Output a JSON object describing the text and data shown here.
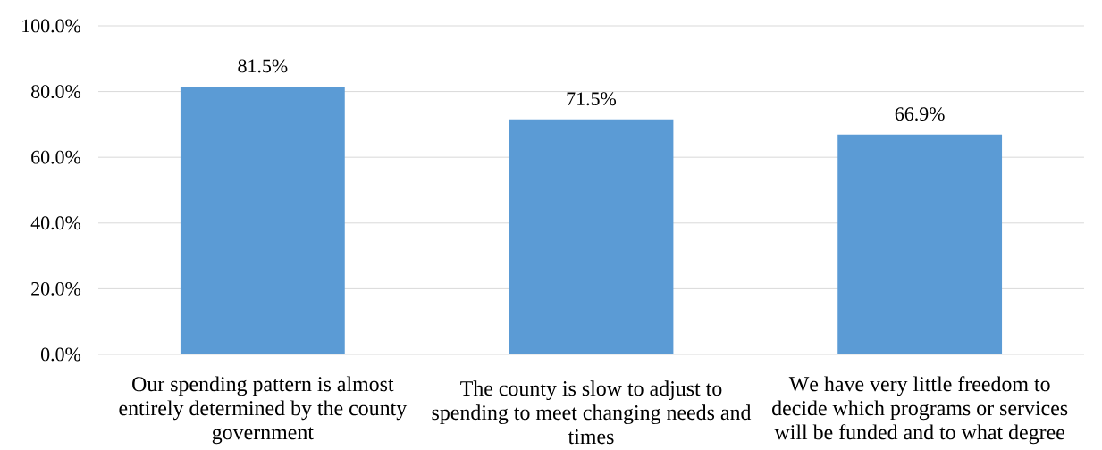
{
  "chart_data": {
    "type": "bar",
    "categories": [
      "Our spending pattern is almost entirely determined by the county government",
      "The county is slow to adjust to spending to meet changing needs and times",
      "We have very little freedom to decide which programs or services will be funded and to what degree"
    ],
    "values": [
      81.5,
      71.5,
      66.9
    ],
    "color": "#5b9bd5",
    "value_labels": [
      "81.5%",
      "71.5%",
      "66.9%"
    ],
    "ylim": [
      0,
      100
    ],
    "yticks": [
      {
        "value": 0,
        "label": "0.0%"
      },
      {
        "value": 20,
        "label": "20.0%"
      },
      {
        "value": 40,
        "label": "40.0%"
      },
      {
        "value": 60,
        "label": "60.0%"
      },
      {
        "value": 80,
        "label": "80.0%"
      },
      {
        "value": 100,
        "label": "100.0%"
      }
    ],
    "grid": "y"
  }
}
